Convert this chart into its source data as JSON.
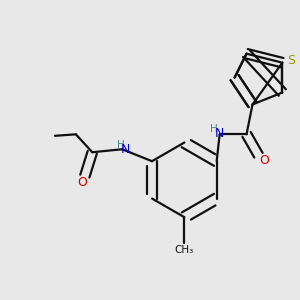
{
  "bg_color": "#e8e8e8",
  "atom_colors": {
    "S": "#999900",
    "N": "#0000cc",
    "O": "#cc0000",
    "C": "#111111",
    "H": "#4d8080"
  },
  "bond_color": "#111111",
  "bond_width": 1.6,
  "dbo": 0.018
}
